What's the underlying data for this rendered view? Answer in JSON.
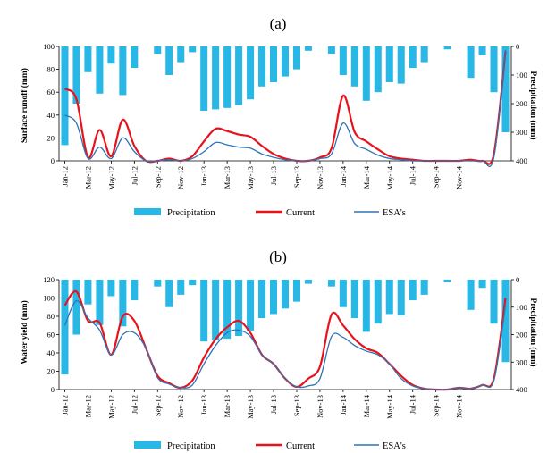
{
  "colors": {
    "precip": "#29b8e6",
    "current": "#e8121c",
    "esa": "#2e74b5",
    "axis": "#000000"
  },
  "chart_data": [
    {
      "panel": "(a)",
      "type": "bar+line",
      "ylabel": "Surface runoff (mm)",
      "ylabel2": "Precipitation (mm)",
      "ylim": [
        0,
        100
      ],
      "ylim2": [
        400,
        0
      ],
      "yticks": [
        "0",
        "20",
        "40",
        "60",
        "80",
        "100"
      ],
      "yticks2": [
        "0",
        "100",
        "200",
        "300",
        "400"
      ],
      "xticks": [
        "Jan-12",
        "Mar-12",
        "May-12",
        "Jul-12",
        "Sep-12",
        "Nov-12",
        "Jan-13",
        "Mar-13",
        "May-13",
        "Jul-13",
        "Sep-13",
        "Nov-13",
        "Jan-14",
        "Mar-14",
        "May-14",
        "Jul-14",
        "Sep-14",
        "Nov-14"
      ],
      "legend": [
        "Precipitation",
        "Current",
        "ESA's"
      ],
      "precipitation": [
        345,
        200,
        90,
        165,
        60,
        170,
        75,
        0,
        25,
        100,
        55,
        20,
        225,
        220,
        215,
        205,
        185,
        140,
        125,
        105,
        80,
        15,
        0,
        25,
        100,
        140,
        190,
        160,
        125,
        130,
        75,
        55,
        0,
        10,
        0,
        110,
        30,
        160,
        300
      ],
      "series": [
        {
          "name": "Current",
          "values": [
            63,
            54,
            3,
            27,
            4,
            36,
            13,
            0,
            0,
            2,
            0,
            4,
            17,
            28,
            26,
            23,
            21,
            13,
            6,
            2,
            0,
            0,
            3,
            11,
            57,
            25,
            17,
            10,
            4,
            2,
            1,
            0,
            0,
            0,
            0,
            1,
            0,
            6,
            96
          ]
        },
        {
          "name": "ESA's",
          "values": [
            40,
            33,
            2,
            12,
            2,
            20,
            8,
            0,
            0,
            1,
            0,
            2,
            8,
            16,
            14,
            12,
            11,
            6,
            3,
            1,
            0,
            0,
            2,
            6,
            33,
            15,
            10,
            5,
            2,
            1,
            0,
            0,
            0,
            0,
            0,
            0,
            0,
            3,
            97
          ]
        }
      ]
    },
    {
      "panel": "(b)",
      "type": "bar+line",
      "ylabel": "Water yield (mm)",
      "ylabel2": "Precipitation (mm)",
      "ylim": [
        0,
        120
      ],
      "ylim2": [
        400,
        0
      ],
      "yticks": [
        "0",
        "20",
        "40",
        "60",
        "80",
        "100",
        "120"
      ],
      "yticks2": [
        "0",
        "100",
        "200",
        "300",
        "400"
      ],
      "xticks": [
        "Jan-12",
        "Mar-12",
        "May-12",
        "Jul-12",
        "Sep-12",
        "Nov-12",
        "Jan-13",
        "Mar-13",
        "May-13",
        "Jul-13",
        "Sep-13",
        "Nov-13",
        "Jan-14",
        "Mar-14",
        "May-14",
        "Jul-14",
        "Sep-14",
        "Nov-14"
      ],
      "legend": [
        "Precipitation",
        "Current",
        "ESA's"
      ],
      "precipitation": [
        345,
        200,
        90,
        165,
        60,
        170,
        75,
        0,
        25,
        100,
        55,
        20,
        225,
        220,
        215,
        205,
        185,
        140,
        125,
        105,
        80,
        15,
        0,
        25,
        100,
        140,
        190,
        160,
        125,
        130,
        75,
        55,
        0,
        10,
        0,
        110,
        30,
        160,
        300
      ],
      "series": [
        {
          "name": "Current",
          "values": [
            92,
            107,
            75,
            73,
            38,
            80,
            75,
            45,
            15,
            7,
            2,
            10,
            35,
            55,
            68,
            75,
            62,
            38,
            28,
            12,
            3,
            12,
            25,
            82,
            70,
            55,
            45,
            40,
            28,
            15,
            5,
            1,
            0,
            0,
            2,
            1,
            5,
            12,
            100
          ]
        },
        {
          "name": "ESA's",
          "values": [
            70,
            97,
            78,
            65,
            38,
            60,
            62,
            45,
            13,
            6,
            2,
            5,
            28,
            48,
            62,
            65,
            58,
            38,
            28,
            12,
            3,
            4,
            12,
            58,
            57,
            48,
            42,
            38,
            28,
            12,
            4,
            1,
            0,
            0,
            2,
            1,
            5,
            10,
            92
          ]
        }
      ]
    }
  ]
}
